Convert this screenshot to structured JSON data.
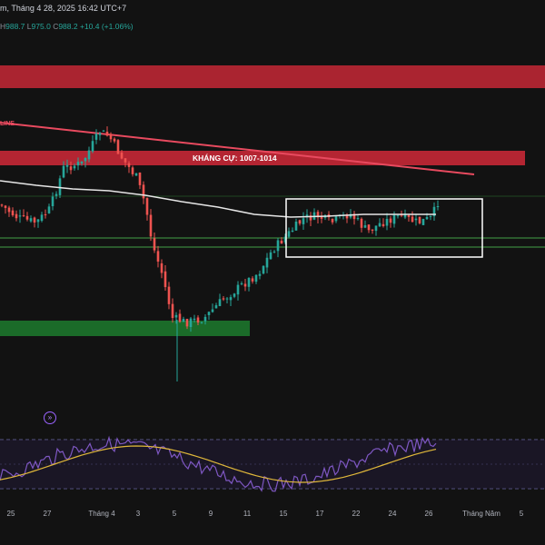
{
  "header": {
    "title_fragment": "m, Tháng 4 28, 2025 16:42 UTC+7",
    "ohlc": {
      "h_label": "H",
      "h_value": "988.7",
      "l_label": "L",
      "l_value": "975.0",
      "c_label": "C",
      "c_value": "988.2",
      "change": "+10.4 (+1.06%)"
    }
  },
  "annotations": {
    "resistance_label": "KHÁNG CỰ: 1007-1014",
    "trendline_label": "LINE"
  },
  "x_axis": {
    "labels": [
      "25",
      "27",
      "Tháng 4",
      "3",
      "5",
      "9",
      "11",
      "15",
      "17",
      "22",
      "24",
      "26",
      "Tháng Năm",
      "5"
    ]
  },
  "colors": {
    "background": "#121212",
    "bull": "#26a69a",
    "bear": "#ef5350",
    "resistance_zone": "#c62836",
    "support_zone": "#1d7b2e",
    "ma_line": "#e6e6e6",
    "trendline": "#e84a5f",
    "rsi": "#7e57c2",
    "rsi_ma": "#e0b83a"
  },
  "indicator_icon": "indicator-toggle-icon"
}
